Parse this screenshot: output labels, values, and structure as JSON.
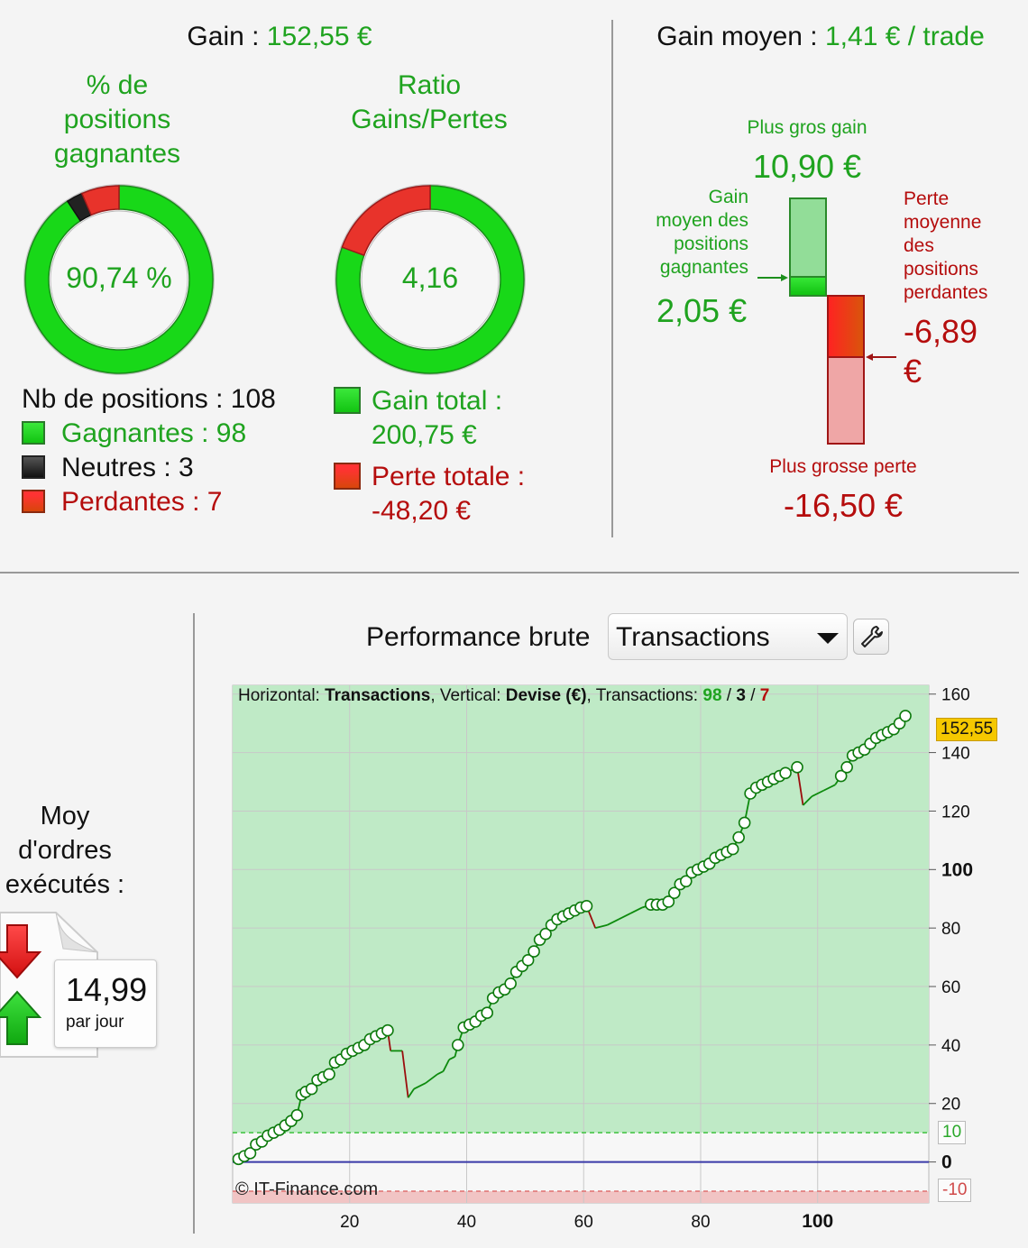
{
  "summary": {
    "gain_label": "Gain : ",
    "gain_value": "152,55 €",
    "avg_label": "Gain moyen : ",
    "avg_value": "1,41 € / trade"
  },
  "donut_win": {
    "title_l1": "% de",
    "title_l2": "positions",
    "title_l3": "gagnantes",
    "center": "90,74 %",
    "win_fraction": 0.9074,
    "neutral_fraction": 0.0278,
    "loss_fraction": 0.0648
  },
  "donut_ratio": {
    "title_l1": "Ratio",
    "title_l2": "Gains/Pertes",
    "center": "4,16",
    "gain_fraction": 0.806,
    "loss_fraction": 0.194
  },
  "counts": {
    "total": "Nb de positions : 108",
    "winners": "Gagnantes : 98",
    "neutral": "Neutres : 3",
    "losers": "Perdantes : 7"
  },
  "totals": {
    "gain_l1": "Gain total :",
    "gain_l2": "200,75 €",
    "loss_l1": "Perte totale :",
    "loss_l2": "-48,20 €"
  },
  "extremes": {
    "best_label": "Plus gros gain",
    "best_value": "10,90 €",
    "avg_gain_l1": "Gain",
    "avg_gain_l2": "moyen des",
    "avg_gain_l3": "positions",
    "avg_gain_l4": "gagnantes",
    "avg_gain_value": "2,05 €",
    "avg_loss_l1": "Perte",
    "avg_loss_l2": "moyenne",
    "avg_loss_l3": "des",
    "avg_loss_l4": "positions",
    "avg_loss_l5": "perdantes",
    "avg_loss_value_l1": "-6,89",
    "avg_loss_value_l2": "€",
    "worst_label": "Plus grosse perte",
    "worst_value": "-16,50 €"
  },
  "orders": {
    "label_l1": "Moy",
    "label_l2": "d'ordres",
    "label_l3": "exécutés :",
    "value": "14,99",
    "unit": "par jour"
  },
  "perf": {
    "title": "Performance brute",
    "select_value": "Transactions",
    "dropdown_icon": "chevron-down-icon",
    "tool_icon": "wrench-icon"
  },
  "chart_info": {
    "p1": "Horizontal: ",
    "b1": "Transactions",
    "p2": ", Vertical: ",
    "b2": "Devise (€)",
    "p3": ", Transactions: ",
    "wins": "98",
    "sep1": " / ",
    "neutral": "3",
    "sep2": " / ",
    "losses": "7",
    "watermark": "© IT-Finance.com",
    "last_value": "152,55",
    "upper_threshold": "10",
    "lower_threshold": "-10"
  },
  "chart_data": {
    "type": "line",
    "xlabel": "",
    "ylabel": "",
    "xlim": [
      0,
      119
    ],
    "ylim": [
      -14,
      163
    ],
    "x_ticks": [
      "20",
      "40",
      "60",
      "80",
      "100"
    ],
    "y_ticks": [
      "160",
      "140",
      "120",
      "100",
      "80",
      "60",
      "40",
      "20",
      "0"
    ],
    "bands": {
      "upper": 10,
      "lower": -10
    },
    "colors": {
      "gain": "#0d8a0d",
      "loss": "#9b0d0d",
      "band_green": "#bfeac6",
      "zero": "#3a3aa8"
    },
    "series": [
      {
        "values": [
          [
            1,
            1
          ],
          [
            2,
            2
          ],
          [
            3,
            3
          ],
          [
            4,
            6
          ],
          [
            5,
            7
          ],
          [
            6,
            9
          ],
          [
            7,
            10
          ],
          [
            8,
            11
          ],
          [
            9,
            12.5
          ],
          [
            10,
            14
          ],
          [
            11,
            16
          ],
          [
            11.8,
            23
          ],
          [
            12.5,
            24
          ],
          [
            13.5,
            25
          ],
          [
            14.5,
            28
          ],
          [
            15.5,
            29
          ],
          [
            16.5,
            30
          ],
          [
            17.5,
            34
          ],
          [
            18.5,
            35
          ],
          [
            19.5,
            37
          ],
          [
            20.5,
            38
          ],
          [
            21.5,
            39
          ],
          [
            22.5,
            40
          ],
          [
            23.5,
            42
          ],
          [
            24.5,
            43
          ],
          [
            25.5,
            44
          ],
          [
            26.5,
            45
          ],
          [
            27,
            38
          ],
          [
            29,
            38
          ],
          [
            30,
            22
          ],
          [
            31,
            25
          ],
          [
            33,
            27
          ],
          [
            35,
            30
          ],
          [
            36,
            31
          ],
          [
            37,
            35
          ],
          [
            38,
            36
          ],
          [
            38.5,
            40
          ],
          [
            39.5,
            46
          ],
          [
            40.5,
            47
          ],
          [
            41.5,
            48
          ],
          [
            42.5,
            50
          ],
          [
            43.5,
            51
          ],
          [
            44.5,
            56
          ],
          [
            45.5,
            58
          ],
          [
            46.5,
            59
          ],
          [
            47.5,
            61
          ],
          [
            48.5,
            65
          ],
          [
            49.5,
            67
          ],
          [
            50.5,
            69
          ],
          [
            51.5,
            72
          ],
          [
            52.5,
            76
          ],
          [
            53.5,
            78
          ],
          [
            54.5,
            81
          ],
          [
            55.5,
            83
          ],
          [
            56.5,
            84
          ],
          [
            57.5,
            85
          ],
          [
            58.5,
            86
          ],
          [
            59.5,
            87
          ],
          [
            60.5,
            87.5
          ],
          [
            62,
            80
          ],
          [
            64,
            81
          ],
          [
            66,
            83
          ],
          [
            68,
            85
          ],
          [
            70,
            87
          ],
          [
            71.5,
            88
          ],
          [
            72.5,
            88
          ],
          [
            73.5,
            88
          ],
          [
            74.5,
            89
          ],
          [
            75.5,
            92
          ],
          [
            76.5,
            95
          ],
          [
            77.5,
            96
          ],
          [
            78.5,
            99
          ],
          [
            79.5,
            100
          ],
          [
            80.5,
            101
          ],
          [
            81.5,
            102
          ],
          [
            82.5,
            104
          ],
          [
            83.5,
            105
          ],
          [
            84.5,
            106
          ],
          [
            85.5,
            107
          ],
          [
            86.5,
            111
          ],
          [
            87.5,
            116
          ],
          [
            88.5,
            126
          ],
          [
            89.5,
            128
          ],
          [
            90.5,
            129
          ],
          [
            91.5,
            130
          ],
          [
            92.5,
            131
          ],
          [
            93.5,
            132
          ],
          [
            94.5,
            133
          ],
          [
            96.5,
            135
          ],
          [
            97.5,
            122
          ],
          [
            99,
            125
          ],
          [
            101,
            127
          ],
          [
            103,
            129
          ],
          [
            104,
            132
          ],
          [
            105,
            135
          ],
          [
            106,
            139
          ],
          [
            107,
            140
          ],
          [
            108,
            141
          ],
          [
            109,
            143
          ],
          [
            110,
            145
          ],
          [
            111,
            146
          ],
          [
            112,
            147
          ],
          [
            113,
            148
          ],
          [
            114,
            150
          ],
          [
            115,
            152.55
          ]
        ],
        "markers_skip_from": 27
      }
    ]
  }
}
